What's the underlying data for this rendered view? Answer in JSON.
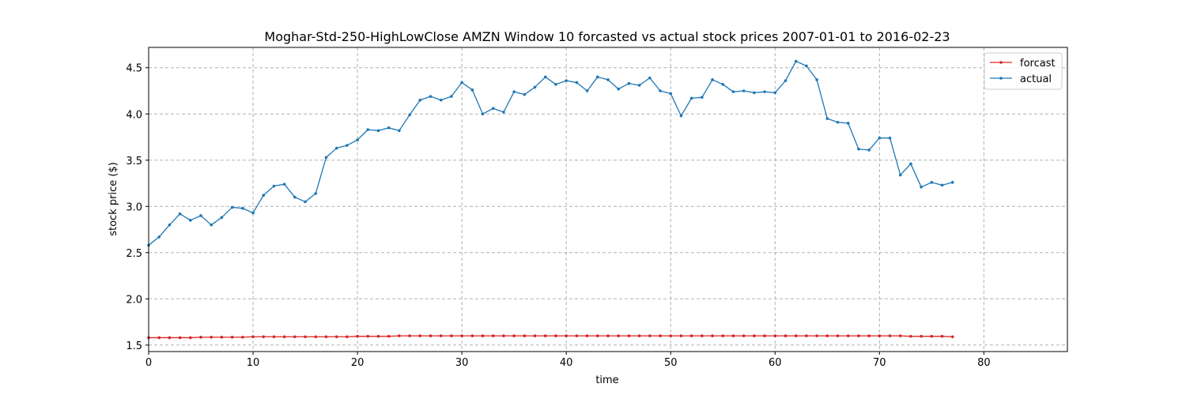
{
  "chart_data": {
    "type": "line",
    "title": "Moghar-Std-250-HighLowClose AMZN Window 10 forcasted vs actual stock prices 2007-01-01 to 2016-02-23",
    "xlabel": "time",
    "ylabel": "stock price ($)",
    "xlim": [
      0,
      88
    ],
    "ylim": [
      1.43,
      4.72
    ],
    "xticks": [
      0,
      10,
      20,
      30,
      40,
      50,
      60,
      70,
      80
    ],
    "yticks": [
      1.5,
      2.0,
      2.5,
      3.0,
      3.5,
      4.0,
      4.5
    ],
    "grid": true,
    "legend_position": "top-right",
    "series": [
      {
        "name": "forcast",
        "color": "#d62728",
        "x": [
          0,
          1,
          2,
          3,
          4,
          5,
          6,
          7,
          8,
          9,
          10,
          11,
          12,
          13,
          14,
          15,
          16,
          17,
          18,
          19,
          20,
          21,
          22,
          23,
          24,
          25,
          26,
          27,
          28,
          29,
          30,
          31,
          32,
          33,
          34,
          35,
          36,
          37,
          38,
          39,
          40,
          41,
          42,
          43,
          44,
          45,
          46,
          47,
          48,
          49,
          50,
          51,
          52,
          53,
          54,
          55,
          56,
          57,
          58,
          59,
          60,
          61,
          62,
          63,
          64,
          65,
          66,
          67,
          68,
          69,
          70,
          71,
          72,
          73,
          74,
          75,
          76,
          77
        ],
        "values": [
          1.58,
          1.58,
          1.58,
          1.58,
          1.58,
          1.585,
          1.585,
          1.585,
          1.585,
          1.585,
          1.59,
          1.59,
          1.59,
          1.59,
          1.59,
          1.59,
          1.59,
          1.59,
          1.59,
          1.59,
          1.595,
          1.595,
          1.595,
          1.595,
          1.6,
          1.6,
          1.6,
          1.6,
          1.6,
          1.6,
          1.6,
          1.6,
          1.6,
          1.6,
          1.6,
          1.6,
          1.6,
          1.6,
          1.6,
          1.6,
          1.6,
          1.6,
          1.6,
          1.6,
          1.6,
          1.6,
          1.6,
          1.6,
          1.6,
          1.6,
          1.6,
          1.6,
          1.6,
          1.6,
          1.6,
          1.6,
          1.6,
          1.6,
          1.6,
          1.6,
          1.6,
          1.6,
          1.6,
          1.6,
          1.6,
          1.6,
          1.6,
          1.6,
          1.6,
          1.6,
          1.6,
          1.6,
          1.6,
          1.595,
          1.595,
          1.595,
          1.595,
          1.59
        ]
      },
      {
        "name": "actual",
        "color": "#1f77b4",
        "x": [
          0,
          1,
          2,
          3,
          4,
          5,
          6,
          7,
          8,
          9,
          10,
          11,
          12,
          13,
          14,
          15,
          16,
          17,
          18,
          19,
          20,
          21,
          22,
          23,
          24,
          25,
          26,
          27,
          28,
          29,
          30,
          31,
          32,
          33,
          34,
          35,
          36,
          37,
          38,
          39,
          40,
          41,
          42,
          43,
          44,
          45,
          46,
          47,
          48,
          49,
          50,
          51,
          52,
          53,
          54,
          55,
          56,
          57,
          58,
          59,
          60,
          61,
          62,
          63,
          64,
          65,
          66,
          67,
          68,
          69,
          70,
          71,
          72,
          73,
          74,
          75,
          76,
          77
        ],
        "values": [
          2.58,
          2.67,
          2.8,
          2.92,
          2.85,
          2.9,
          2.8,
          2.88,
          2.99,
          2.98,
          2.93,
          3.12,
          3.22,
          3.24,
          3.1,
          3.05,
          3.14,
          3.53,
          3.63,
          3.66,
          3.72,
          3.83,
          3.82,
          3.85,
          3.82,
          3.99,
          4.15,
          4.19,
          4.15,
          4.19,
          4.34,
          4.26,
          4.0,
          4.06,
          4.02,
          4.24,
          4.21,
          4.29,
          4.4,
          4.32,
          4.36,
          4.34,
          4.25,
          4.4,
          4.37,
          4.27,
          4.33,
          4.31,
          4.39,
          4.25,
          4.22,
          3.98,
          4.17,
          4.18,
          4.37,
          4.32,
          4.24,
          4.25,
          4.23,
          4.24,
          4.23,
          4.36,
          4.57,
          4.52,
          4.37,
          3.95,
          3.91,
          3.9,
          3.62,
          3.61,
          3.74,
          3.74,
          3.34,
          3.46,
          3.21,
          3.26,
          3.23,
          3.26
        ]
      }
    ]
  }
}
